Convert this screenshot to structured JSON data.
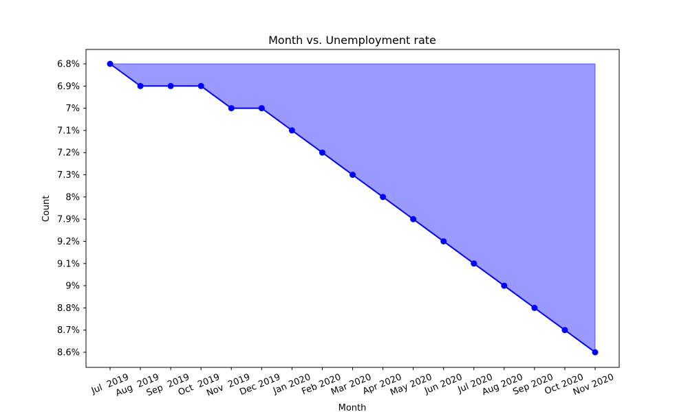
{
  "chart_data": {
    "type": "line",
    "title": "Month vs. Unemployment rate",
    "xlabel": "Month",
    "ylabel": "Count",
    "categories": [
      "Jul  2019",
      "Aug  2019",
      "Sep  2019",
      "Oct  2019",
      "Nov  2019",
      "Dec 2019",
      "Jan 2020",
      "Feb 2020",
      "Mar 2020",
      "Apr 2020",
      "May 2020",
      "Jun 2020",
      "Jul 2020",
      "Aug 2020",
      "Sep 2020",
      "Oct 2020",
      "Nov 2020"
    ],
    "y_categories": [
      "6.8%",
      "6.9%",
      "7%",
      "7.1%",
      "7.2%",
      "7.3%",
      "8%",
      "7.9%",
      "9.2%",
      "9.1%",
      "9%",
      "8.8%",
      "8.7%",
      "8.6%"
    ],
    "values": [
      "6.8%",
      "6.9%",
      "6.9%",
      "6.9%",
      "7%",
      "7%",
      "7.1%",
      "7.2%",
      "7.3%",
      "8%",
      "7.9%",
      "9.2%",
      "9.1%",
      "9%",
      "8.8%",
      "8.7%",
      "8.6%"
    ],
    "line_color": "#0000ff",
    "fill_color": "#9999ff",
    "fill": "area between line and top category",
    "grid": false,
    "legend": false
  }
}
